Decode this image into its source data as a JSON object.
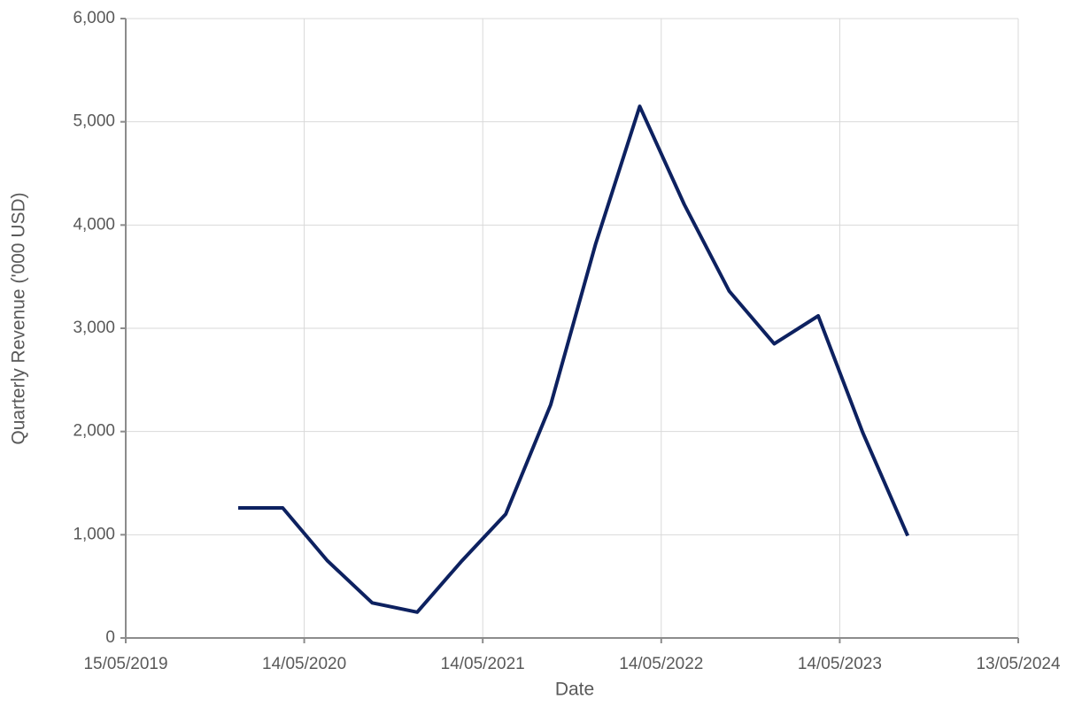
{
  "chart_data": {
    "type": "line",
    "x_label": "Date",
    "y_label": "Quarterly Revenue ('000 USD)",
    "x": [
      "2019-12-31",
      "2020-03-31",
      "2020-06-30",
      "2020-09-30",
      "2020-12-31",
      "2021-03-31",
      "2021-06-30",
      "2021-09-30",
      "2021-12-31",
      "2022-03-31",
      "2022-06-30",
      "2022-09-30",
      "2022-12-31",
      "2023-03-31",
      "2023-06-30",
      "2023-09-30"
    ],
    "series": [
      {
        "color": "#0d2160",
        "values": [
          1260,
          1260,
          750,
          340,
          250,
          740,
          1200,
          2260,
          3820,
          5150,
          4200,
          3360,
          2850,
          3120,
          1990,
          990
        ]
      }
    ],
    "xlim": [
      "2019-05-15",
      "2024-05-13"
    ],
    "xticks": [
      {
        "value": "2019-05-15",
        "label": "15/05/2019"
      },
      {
        "value": "2020-05-14",
        "label": "14/05/2020"
      },
      {
        "value": "2021-05-14",
        "label": "14/05/2021"
      },
      {
        "value": "2022-05-14",
        "label": "14/05/2022"
      },
      {
        "value": "2023-05-14",
        "label": "14/05/2023"
      },
      {
        "value": "2024-05-13",
        "label": "13/05/2024"
      }
    ],
    "ylim": [
      0,
      6000
    ],
    "yticks": [
      0,
      {
        "value": 1000,
        "label": "1,000"
      },
      {
        "value": 2000,
        "label": "2,000"
      },
      {
        "value": 3000,
        "label": "3,000"
      },
      {
        "value": 4000,
        "label": "4,000"
      },
      {
        "value": 5000,
        "label": "5,000"
      },
      {
        "value": 6000,
        "label": "6,000"
      }
    ],
    "grid": true
  }
}
